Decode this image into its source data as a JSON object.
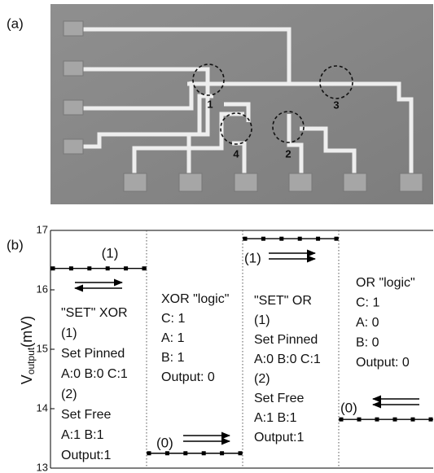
{
  "panel_a": {
    "label": "(a)",
    "markers": [
      "1",
      "2",
      "3",
      "4"
    ]
  },
  "chart_data": {
    "type": "step",
    "panel_label": "(b)",
    "ylabel": "V",
    "ylabel_sub": "output",
    "ylabel_unit": "(mV)",
    "values": [
      16.36,
      13.25,
      16.86,
      13.82
    ],
    "color": "#000000",
    "ylim": [
      13,
      17
    ],
    "yticks": [
      13,
      14,
      15,
      16,
      17
    ],
    "annotations": [
      {
        "level_label": "(1)",
        "lines": [
          "\"SET\" XOR",
          "(1)",
          "Set Pinned",
          "A:0 B:0 C:1",
          "(2)",
          "Set Free",
          "A:1 B:1",
          "Output:1"
        ]
      },
      {
        "level_label": "(0)",
        "lines": [
          "XOR \"logic\"",
          "C: 1",
          "A: 1",
          "B: 1",
          "Output: 0"
        ]
      },
      {
        "level_label": "(1)",
        "lines": [
          "\"SET\" OR",
          "(1)",
          "Set Pinned",
          "A:0 B:0 C:1",
          "(2)",
          "Set Free",
          "A:1 B:1",
          "Output:1"
        ]
      },
      {
        "level_label": "(0)",
        "lines": [
          "OR \"logic\"",
          "C: 1",
          "A: 0",
          "B: 0",
          "Output: 0"
        ]
      }
    ]
  }
}
